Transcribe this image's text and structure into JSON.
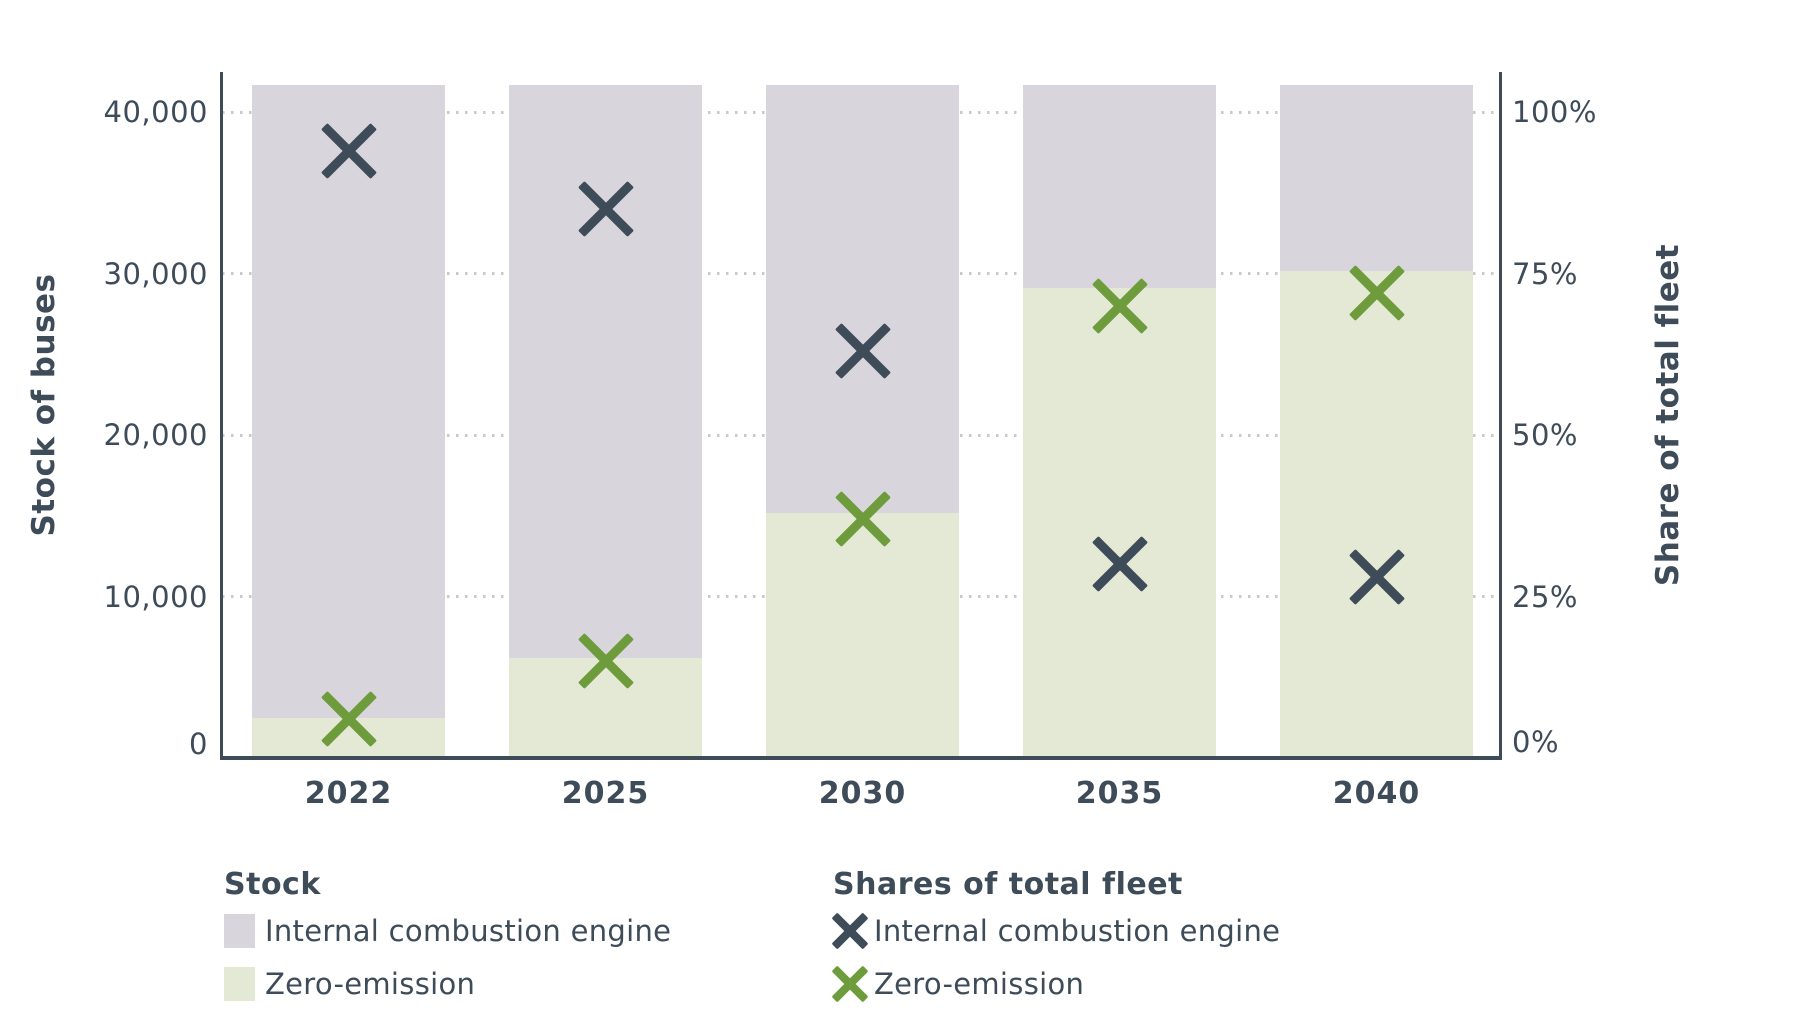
{
  "chart_data": {
    "type": "bar",
    "subtype": "stacked-bars-with-share-markers",
    "title": "",
    "categories": [
      "2022",
      "2025",
      "2030",
      "2035",
      "2040"
    ],
    "left_axis": {
      "title": "Stock of buses",
      "ticks": [
        "0",
        "10,000",
        "20,000",
        "30,000",
        "40,000"
      ],
      "tick_values": [
        0,
        10000,
        20000,
        30000,
        40000
      ],
      "max": 41700
    },
    "right_axis": {
      "title": "Share of total fleet",
      "ticks": [
        "0%",
        "25%",
        "50%",
        "75%",
        "100%"
      ],
      "tick_values": [
        0,
        25,
        50,
        75,
        100
      ],
      "note": "100% aligns with 40,000 buses on the left axis"
    },
    "grid": "dotted horizontal gridlines at each left-axis tick",
    "legend_position": "bottom",
    "series": [
      {
        "name": "Internal combustion engine",
        "role": "bar-stack-top",
        "color": "#d8d6dc",
        "values": [
          39200,
          35500,
          26500,
          12600,
          11500
        ]
      },
      {
        "name": "Zero-emission",
        "role": "bar-stack-bottom",
        "color": "#e3e9d5",
        "values": [
          2500,
          6200,
          15200,
          29100,
          30200
        ]
      },
      {
        "name": "Internal combustion engine (share)",
        "role": "x-marker",
        "color": "#3e4b58",
        "values_pct": [
          94,
          85,
          63,
          30,
          28
        ]
      },
      {
        "name": "Zero-emission (share)",
        "role": "x-marker",
        "color": "#6e9c3d",
        "values_pct": [
          6,
          15,
          37,
          70,
          72
        ]
      }
    ]
  },
  "legend": {
    "stock_heading": "Stock",
    "shares_heading": "Shares of total fleet",
    "ice_label": "Internal combustion engine",
    "ze_label": "Zero-emission"
  },
  "colors": {
    "ice_bar": "#d8d6dc",
    "ze_bar": "#e3e9d5",
    "ice_marker": "#3e4b58",
    "ze_marker": "#6e9c3d",
    "text": "#3e4b58",
    "gridline": "#c9c9c9",
    "background": "#ffffff"
  }
}
